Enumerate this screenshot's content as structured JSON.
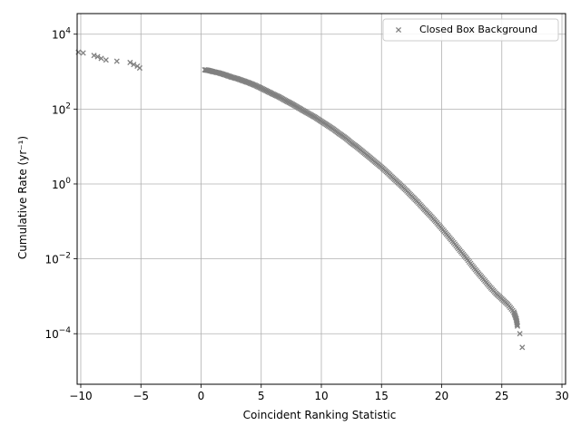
{
  "chart_data": {
    "type": "scatter",
    "title": "",
    "xlabel": "Coincident Ranking Statistic",
    "ylabel": "Cumulative Rate (yr⁻¹)",
    "xlim": [
      -10.3,
      30.3
    ],
    "ylim_log10": [
      -5.35,
      4.55
    ],
    "yscale": "log",
    "grid": true,
    "legend_position": "top-right",
    "x_ticks": [
      -10,
      -5,
      0,
      5,
      10,
      15,
      20,
      25,
      30
    ],
    "y_ticks": [
      {
        "exp": 4,
        "base": "10",
        "sup": "4"
      },
      {
        "exp": 2,
        "base": "10",
        "sup": "2"
      },
      {
        "exp": 0,
        "base": "10",
        "sup": "0"
      },
      {
        "exp": -2,
        "base": "10",
        "sup": "−2"
      },
      {
        "exp": -4,
        "base": "10",
        "sup": "−4"
      }
    ],
    "series": [
      {
        "name": "Closed Box Background",
        "color": "#808080",
        "marker": "x",
        "points": [
          [
            -10.2,
            3300
          ],
          [
            -9.8,
            3150
          ],
          [
            -8.9,
            2700
          ],
          [
            -8.6,
            2500
          ],
          [
            -8.3,
            2250
          ],
          [
            -7.9,
            2050
          ],
          [
            -7.0,
            1900
          ],
          [
            -5.9,
            1750
          ],
          [
            -5.6,
            1550
          ],
          [
            -5.3,
            1400
          ],
          [
            -5.1,
            1250
          ],
          [
            0.3,
            1120
          ],
          [
            0.6,
            1080
          ],
          [
            1.0,
            1000
          ],
          [
            1.5,
            920
          ],
          [
            2.0,
            820
          ],
          [
            2.5,
            720
          ],
          [
            3.0,
            650
          ],
          [
            3.5,
            570
          ],
          [
            4.0,
            500
          ],
          [
            4.5,
            430
          ],
          [
            5.0,
            360
          ],
          [
            5.5,
            300
          ],
          [
            6.0,
            250
          ],
          [
            6.5,
            210
          ],
          [
            7.0,
            170
          ],
          [
            7.5,
            140
          ],
          [
            8.0,
            113
          ],
          [
            8.5,
            91
          ],
          [
            9.0,
            74
          ],
          [
            9.5,
            60
          ],
          [
            10.0,
            47
          ],
          [
            10.5,
            37
          ],
          [
            11.0,
            29
          ],
          [
            11.5,
            22
          ],
          [
            12.0,
            17
          ],
          [
            12.5,
            12.5
          ],
          [
            13.0,
            9.5
          ],
          [
            13.5,
            7.0
          ],
          [
            14.0,
            5.2
          ],
          [
            14.5,
            3.8
          ],
          [
            15.0,
            2.8
          ],
          [
            15.5,
            2.0
          ],
          [
            16.0,
            1.4
          ],
          [
            16.5,
            1.0
          ],
          [
            17.0,
            0.7
          ],
          [
            17.5,
            0.48
          ],
          [
            18.0,
            0.33
          ],
          [
            18.5,
            0.22
          ],
          [
            19.0,
            0.15
          ],
          [
            19.5,
            0.1
          ],
          [
            20.0,
            0.065
          ],
          [
            20.5,
            0.042
          ],
          [
            21.0,
            0.027
          ],
          [
            21.5,
            0.017
          ],
          [
            22.0,
            0.011
          ],
          [
            22.5,
            0.0068
          ],
          [
            23.0,
            0.0043
          ],
          [
            23.5,
            0.0028
          ],
          [
            24.0,
            0.0018
          ],
          [
            24.5,
            0.0012
          ],
          [
            25.0,
            0.00085
          ],
          [
            25.5,
            0.0006
          ],
          [
            26.0,
            0.00038
          ],
          [
            26.2,
            0.00025
          ],
          [
            26.3,
            0.00016
          ],
          [
            26.5,
            0.0001
          ],
          [
            26.7,
            4.3e-05
          ]
        ]
      }
    ]
  }
}
